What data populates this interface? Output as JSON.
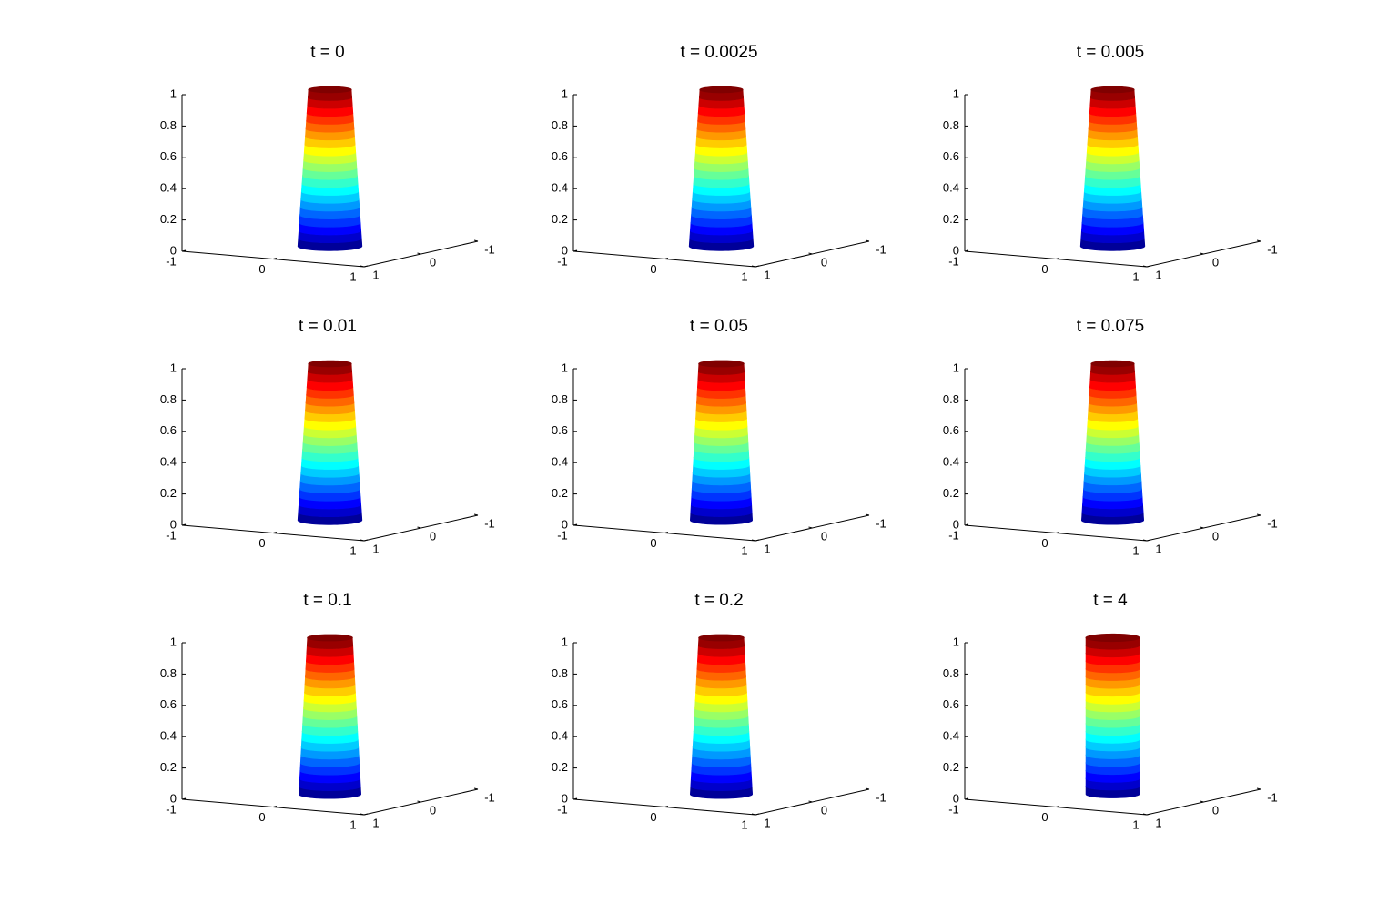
{
  "chart_data": [
    {
      "type": "surface",
      "title": "t = 0",
      "radius": [
        0.3,
        0.2
      ],
      "colormap": "jet",
      "xlim": [
        -1,
        1
      ],
      "ylim": [
        -1,
        1
      ],
      "zlim": [
        0,
        1
      ],
      "xticks": [
        -1,
        0,
        1
      ],
      "yticks": [
        -1,
        0,
        1
      ],
      "zticks": [
        0,
        0.2,
        0.4,
        0.6,
        0.8,
        1
      ]
    },
    {
      "type": "surface",
      "title": "t = 0.0025",
      "radius": [
        0.3,
        0.2
      ],
      "colormap": "jet",
      "xlim": [
        -1,
        1
      ],
      "ylim": [
        -1,
        1
      ],
      "zlim": [
        0,
        1
      ],
      "xticks": [
        -1,
        0,
        1
      ],
      "yticks": [
        -1,
        0,
        1
      ],
      "zticks": [
        0,
        0.2,
        0.4,
        0.6,
        0.8,
        1
      ]
    },
    {
      "type": "surface",
      "title": "t = 0.005",
      "radius": [
        0.3,
        0.2
      ],
      "colormap": "jet",
      "xlim": [
        -1,
        1
      ],
      "ylim": [
        -1,
        1
      ],
      "zlim": [
        0,
        1
      ],
      "xticks": [
        -1,
        0,
        1
      ],
      "yticks": [
        -1,
        0,
        1
      ],
      "zticks": [
        0,
        0.2,
        0.4,
        0.6,
        0.8,
        1
      ]
    },
    {
      "type": "surface",
      "title": "t = 0.01",
      "radius": [
        0.3,
        0.2
      ],
      "colormap": "jet",
      "xlim": [
        -1,
        1
      ],
      "ylim": [
        -1,
        1
      ],
      "zlim": [
        0,
        1
      ],
      "xticks": [
        -1,
        0,
        1
      ],
      "yticks": [
        -1,
        0,
        1
      ],
      "zticks": [
        0,
        0.2,
        0.4,
        0.6,
        0.8,
        1
      ]
    },
    {
      "type": "surface",
      "title": "t = 0.05",
      "radius": [
        0.29,
        0.21
      ],
      "colormap": "jet",
      "xlim": [
        -1,
        1
      ],
      "ylim": [
        -1,
        1
      ],
      "zlim": [
        0,
        1
      ],
      "xticks": [
        -1,
        0,
        1
      ],
      "yticks": [
        -1,
        0,
        1
      ],
      "zticks": [
        0,
        0.2,
        0.4,
        0.6,
        0.8,
        1
      ]
    },
    {
      "type": "surface",
      "title": "t = 0.075",
      "radius": [
        0.29,
        0.2
      ],
      "colormap": "jet",
      "xlim": [
        -1,
        1
      ],
      "ylim": [
        -1,
        1
      ],
      "zlim": [
        0,
        1
      ],
      "xticks": [
        -1,
        0,
        1
      ],
      "yticks": [
        -1,
        0,
        1
      ],
      "zticks": [
        0,
        0.2,
        0.4,
        0.6,
        0.8,
        1
      ]
    },
    {
      "type": "surface",
      "title": "t = 0.1",
      "radius": [
        0.29,
        0.21
      ],
      "colormap": "jet",
      "xlim": [
        -1,
        1
      ],
      "ylim": [
        -1,
        1
      ],
      "zlim": [
        0,
        1
      ],
      "xticks": [
        -1,
        0,
        1
      ],
      "yticks": [
        -1,
        0,
        1
      ],
      "zticks": [
        0,
        0.2,
        0.4,
        0.6,
        0.8,
        1
      ]
    },
    {
      "type": "surface",
      "title": "t = 0.2",
      "radius": [
        0.29,
        0.21
      ],
      "colormap": "jet",
      "xlim": [
        -1,
        1
      ],
      "ylim": [
        -1,
        1
      ],
      "zlim": [
        0,
        1
      ],
      "xticks": [
        -1,
        0,
        1
      ],
      "yticks": [
        -1,
        0,
        1
      ],
      "zticks": [
        0,
        0.2,
        0.4,
        0.6,
        0.8,
        1
      ]
    },
    {
      "type": "surface",
      "title": "t = 4",
      "radius": [
        0.25,
        0.25
      ],
      "colormap": "jet",
      "xlim": [
        -1,
        1
      ],
      "ylim": [
        -1,
        1
      ],
      "zlim": [
        0,
        1
      ],
      "xticks": [
        -1,
        0,
        1
      ],
      "yticks": [
        -1,
        0,
        1
      ],
      "zticks": [
        0,
        0.2,
        0.4,
        0.6,
        0.8,
        1
      ]
    }
  ]
}
